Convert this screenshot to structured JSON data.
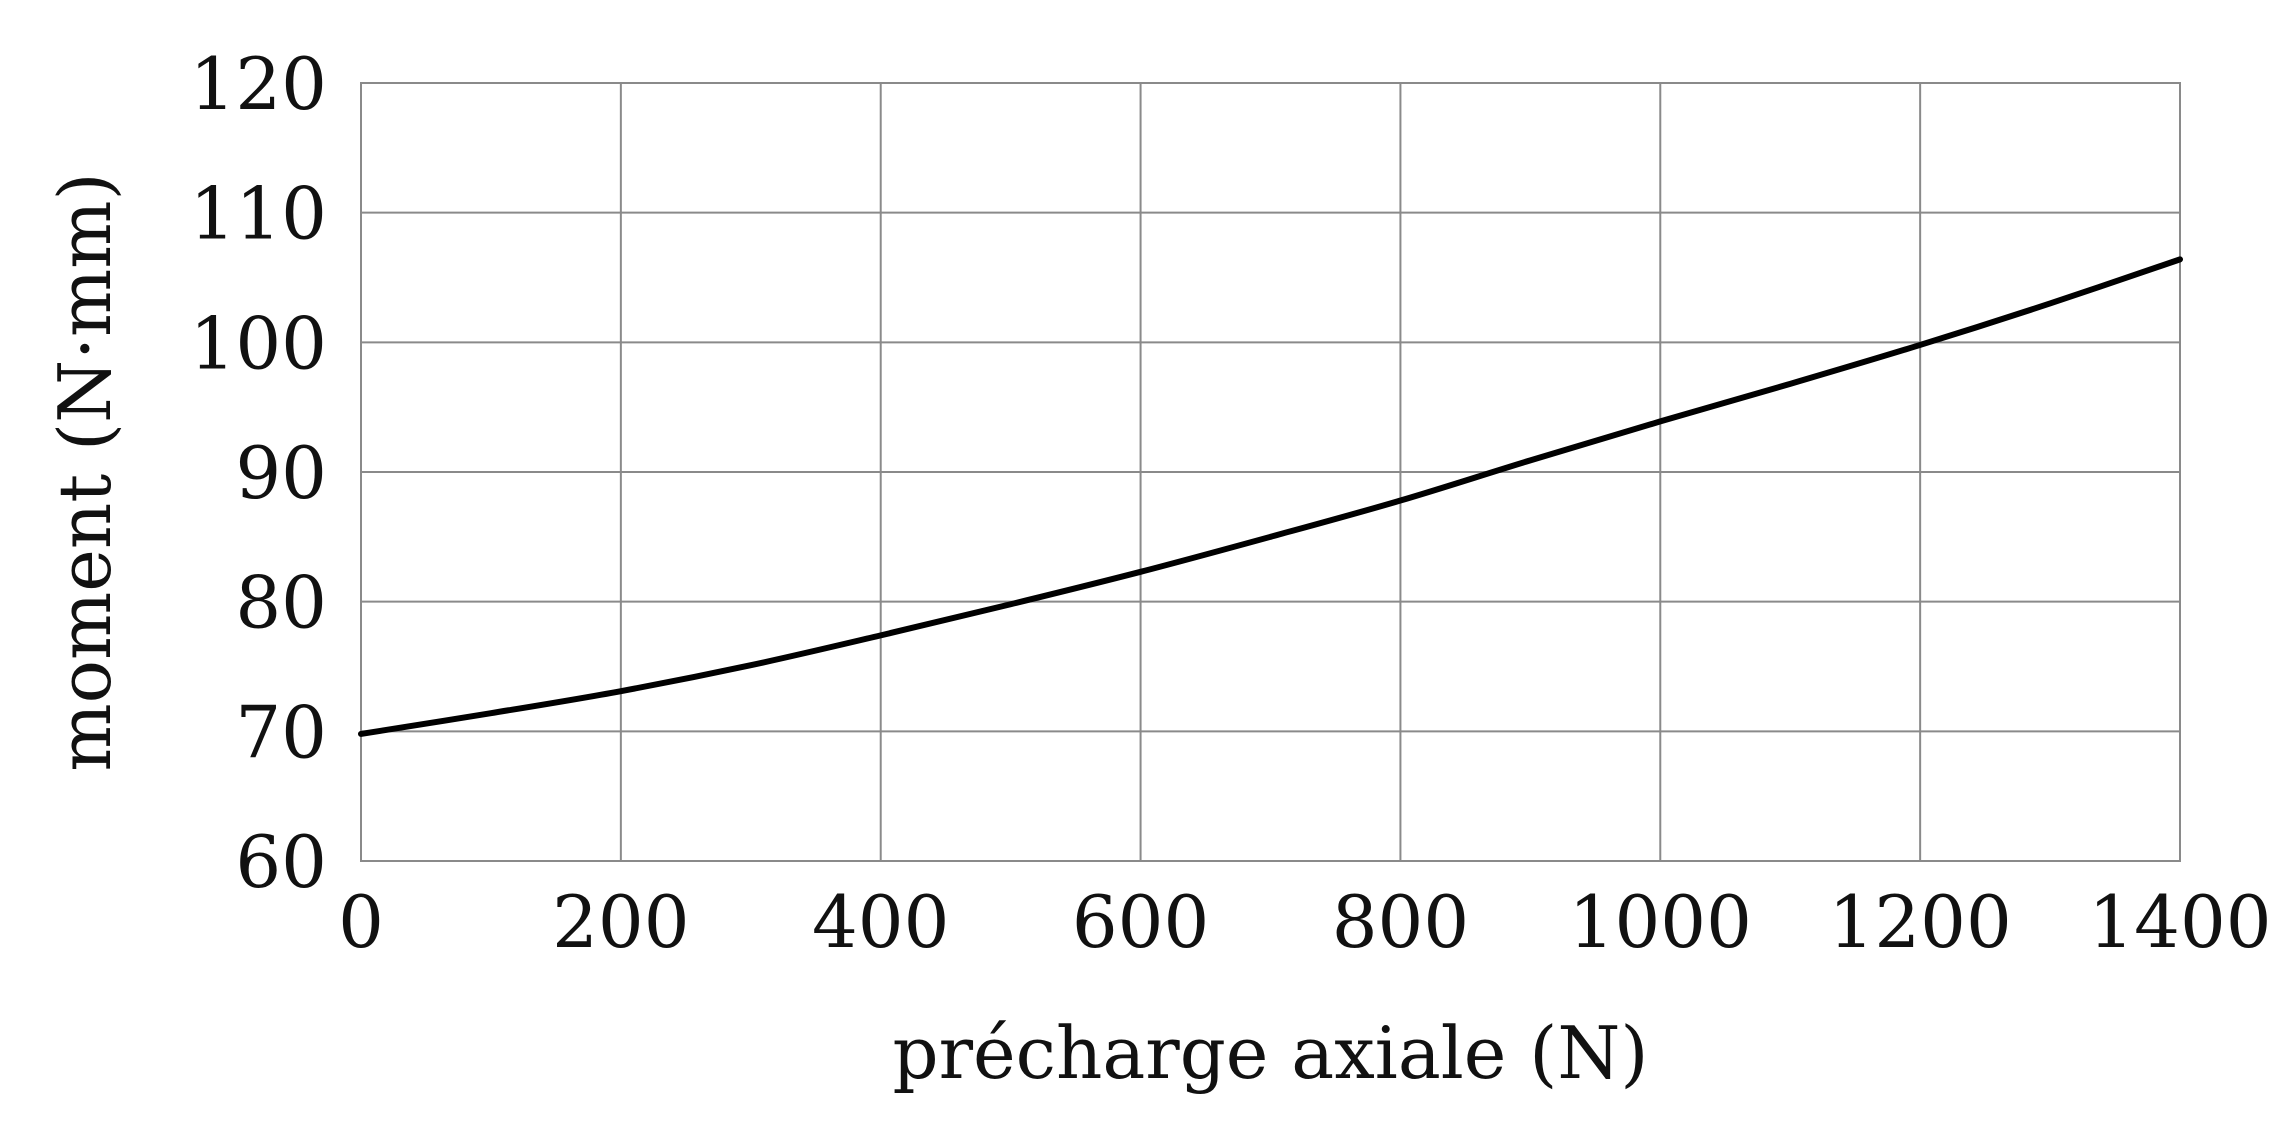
{
  "chart_data": {
    "type": "line",
    "title": "",
    "xlabel": "précharge axiale (N)",
    "ylabel": "moment (N·mm)",
    "xlim": [
      0,
      1400
    ],
    "ylim": [
      60,
      120
    ],
    "x_ticks": [
      "0",
      "200",
      "400",
      "600",
      "800",
      "1000",
      "1200",
      "1400"
    ],
    "y_ticks": [
      "60",
      "70",
      "80",
      "90",
      "100",
      "110",
      "120"
    ],
    "grid": true,
    "legend": "none",
    "series": [
      {
        "color": "#000000",
        "x": [
          0,
          100,
          200,
          300,
          400,
          500,
          600,
          700,
          800,
          900,
          1000,
          1100,
          1200,
          1300,
          1400
        ],
        "y": [
          69.8,
          71.4,
          73.1,
          75.1,
          77.4,
          79.8,
          82.3,
          85.0,
          87.8,
          90.9,
          93.9,
          96.8,
          99.8,
          103.0,
          106.4
        ]
      }
    ]
  }
}
